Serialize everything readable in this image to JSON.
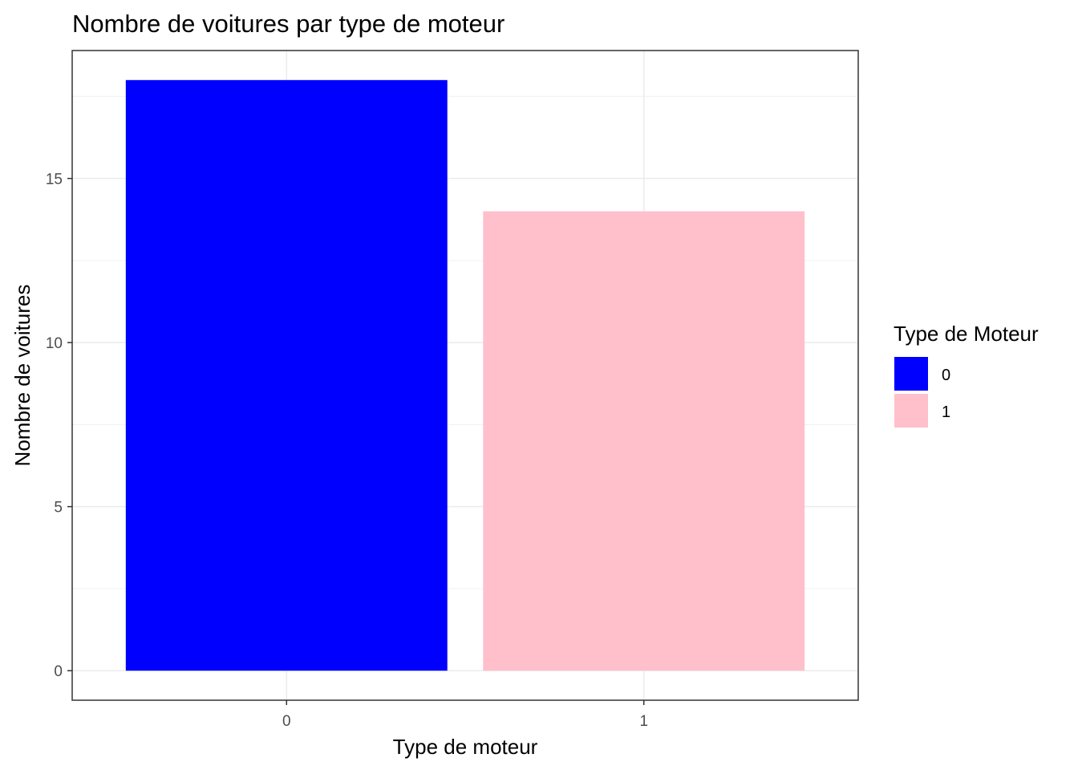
{
  "chart_data": {
    "type": "bar",
    "title": "Nombre de voitures par type de moteur",
    "xlabel": "Type de moteur",
    "ylabel": "Nombre de voitures",
    "categories": [
      "0",
      "1"
    ],
    "values": [
      18,
      14
    ],
    "colors": [
      "#0000ff",
      "#ffc0cb"
    ],
    "ylim": [
      -0.9,
      18.9
    ],
    "yticks": [
      0,
      5,
      10,
      15
    ],
    "ytick_labels": [
      "0",
      "5",
      "10",
      "15"
    ],
    "grid": true,
    "legend": {
      "title": "Type de Moteur",
      "placement": "right",
      "entries": [
        {
          "label": "0",
          "color": "#0000ff"
        },
        {
          "label": "1",
          "color": "#ffc0cb"
        }
      ]
    }
  }
}
